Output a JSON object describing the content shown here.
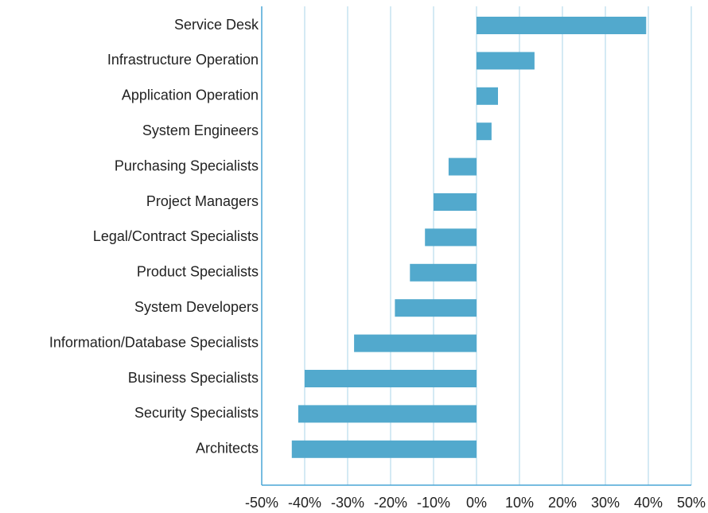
{
  "chart_data": {
    "type": "hbar",
    "categories": [
      "Service Desk",
      "Infrastructure Operation",
      "Application Operation",
      "System Engineers",
      "Purchasing Specialists",
      "Project Managers",
      "Legal/Contract Specialists",
      "Product Specialists",
      "System Developers",
      "Information/Database Specialists",
      "Business Specialists",
      "Security Specialists",
      "Architects"
    ],
    "values": [
      39.5,
      13.5,
      5,
      3.5,
      -6.5,
      -10,
      -12,
      -15.5,
      -19,
      -28.5,
      -40,
      -41.5,
      -43
    ],
    "color": "#52a9cd",
    "xlim": [
      -50,
      50
    ],
    "xticks": [
      {
        "value": -50,
        "label": "-50%"
      },
      {
        "value": -40,
        "label": "-40%"
      },
      {
        "value": -30,
        "label": "-30%"
      },
      {
        "value": -20,
        "label": "-20%"
      },
      {
        "value": -10,
        "label": "-10%"
      },
      {
        "value": 0,
        "label": "0%"
      },
      {
        "value": 10,
        "label": "10%"
      },
      {
        "value": 20,
        "label": "20%"
      },
      {
        "value": 30,
        "label": "30%"
      },
      {
        "value": 40,
        "label": "40%"
      },
      {
        "value": 50,
        "label": "50%"
      }
    ],
    "grid": true
  }
}
